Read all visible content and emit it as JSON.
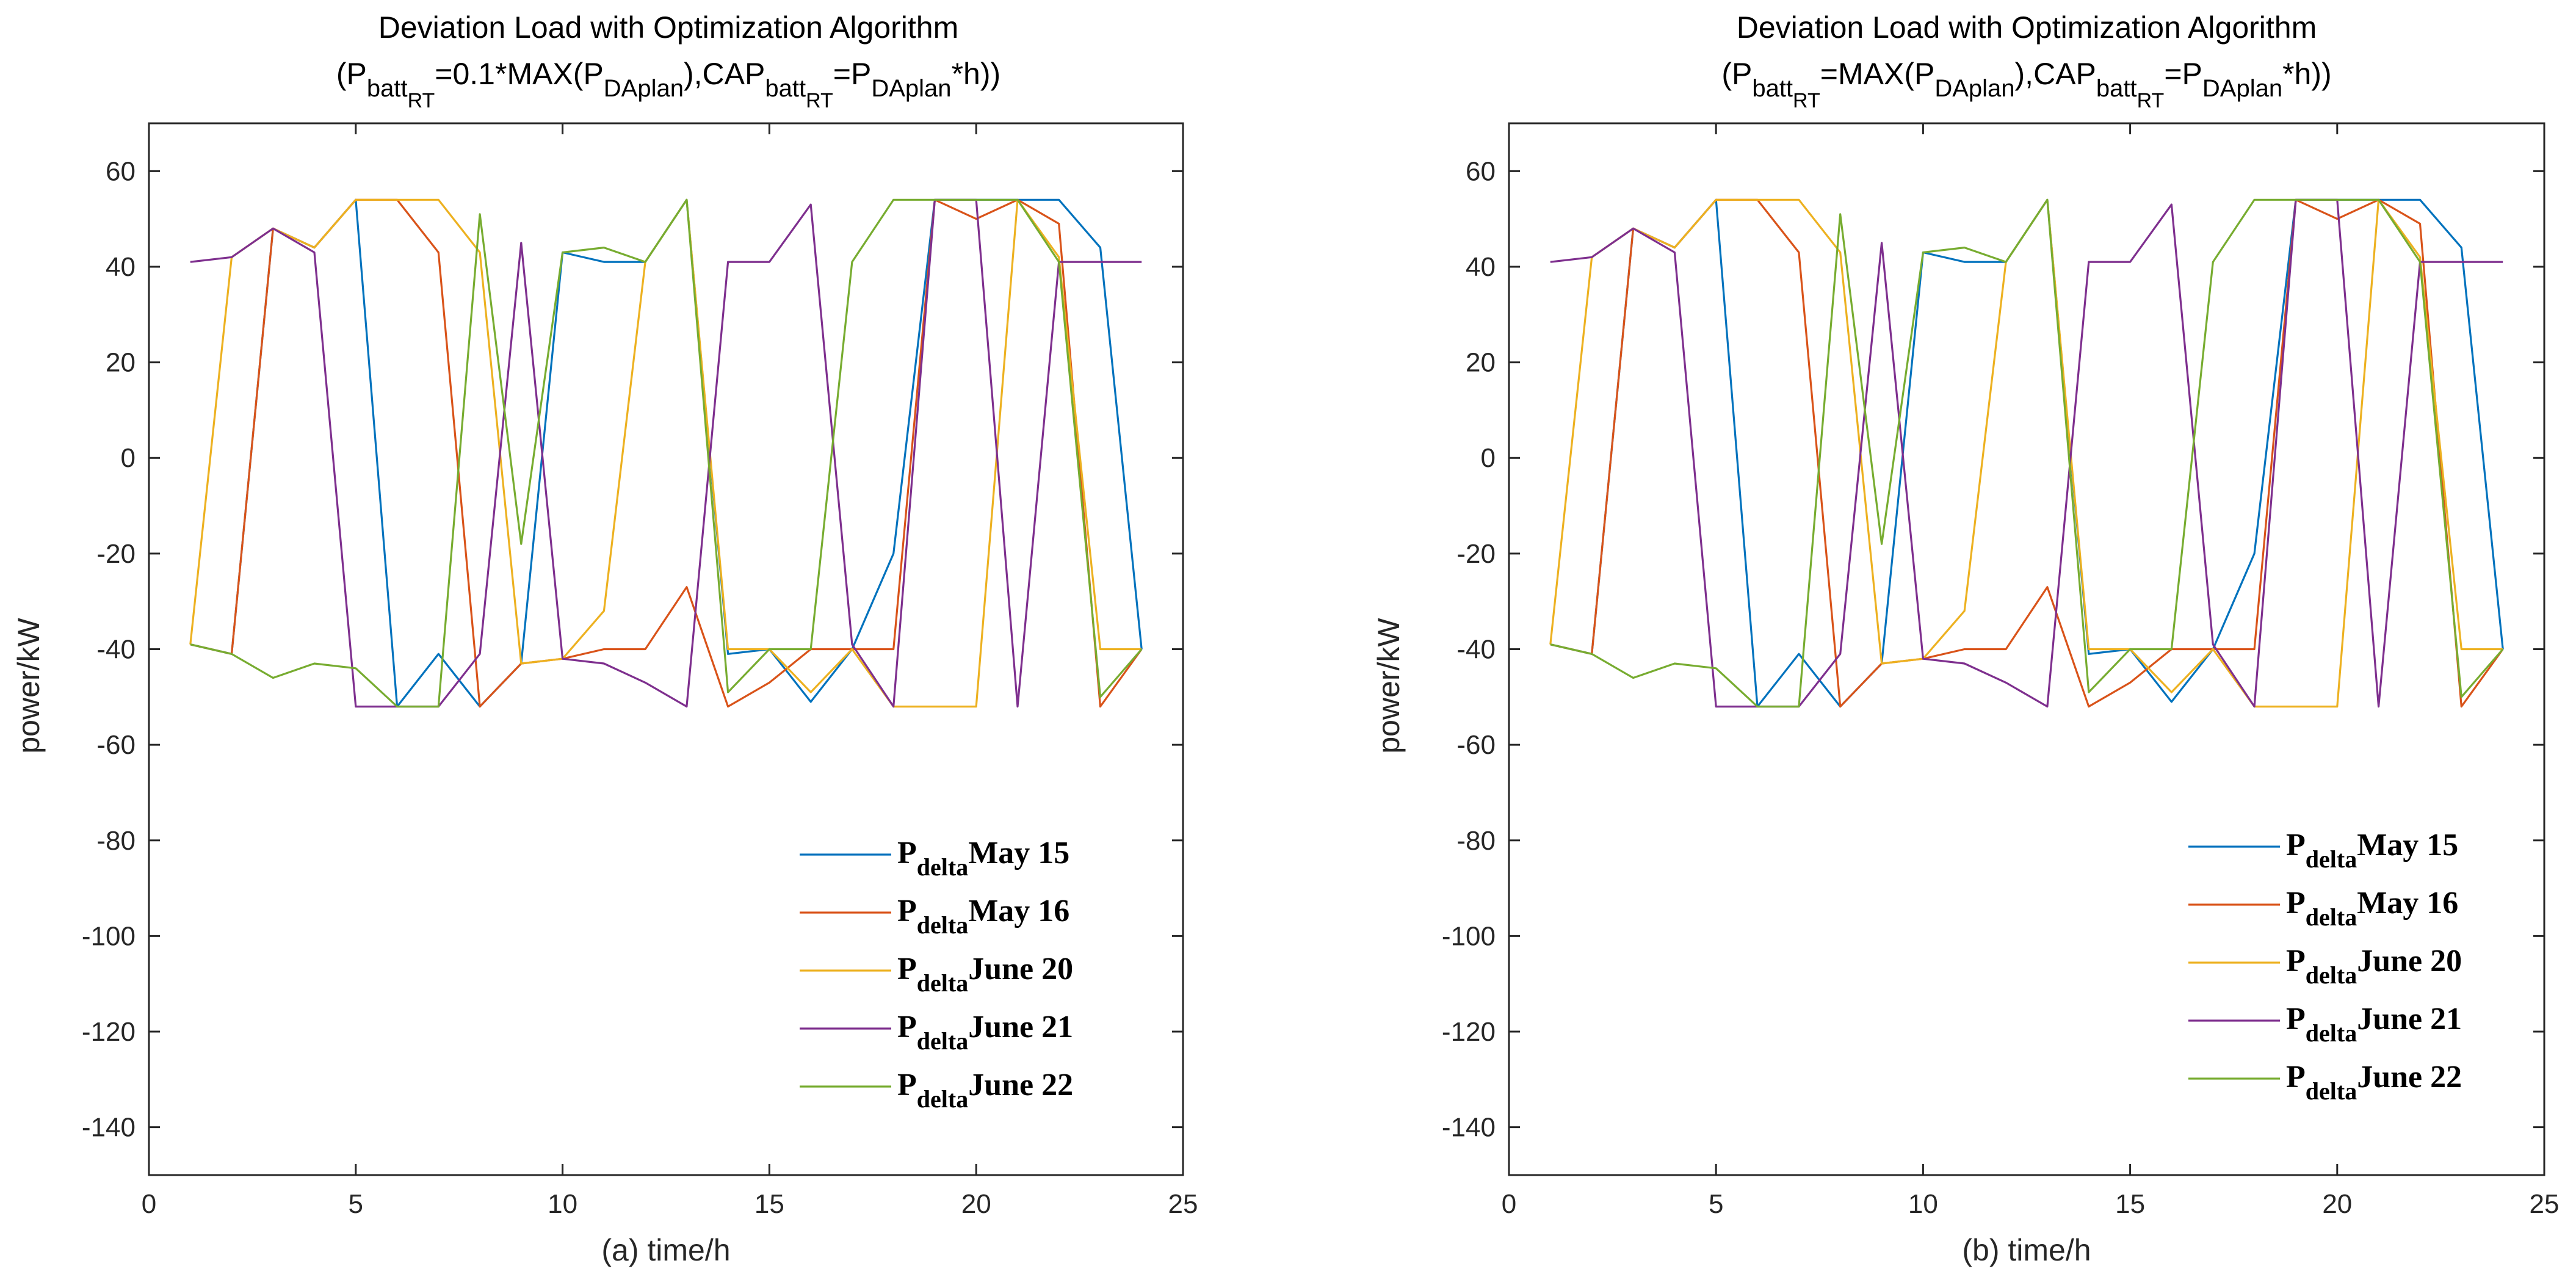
{
  "chart_data": [
    {
      "type": "line",
      "title_line1": "Deviation Load with Optimization Algorithm",
      "title_line2": {
        "open": "(P",
        "sub1": "batt",
        "subsub1": "RT",
        "mid1": "=0.1*MAX(P",
        "sub2": "DAplan",
        "mid2": "),CAP",
        "sub3": "batt",
        "subsub3": "RT",
        "mid3": "=P",
        "sub4": "DAplan",
        "close": "*h))"
      },
      "xlabel": "(a) time/h",
      "ylabel": "power/kW",
      "xlim": [
        0,
        25
      ],
      "ylim": [
        -150,
        70
      ],
      "xticks": [
        0,
        5,
        10,
        15,
        20,
        25
      ],
      "yticks": [
        60,
        40,
        20,
        0,
        -20,
        -40,
        -60,
        -80,
        -100,
        -120,
        -140
      ],
      "x": [
        1,
        2,
        3,
        4,
        5,
        6,
        7,
        8,
        9,
        10,
        11,
        12,
        13,
        14,
        15,
        16,
        17,
        18,
        19,
        20,
        21,
        22,
        23,
        24
      ],
      "series": [
        {
          "name": "May 15",
          "prefix": "P",
          "sub": "delta",
          "color": "#0072BD",
          "values": [
            -39,
            -41,
            48,
            44,
            54,
            -52,
            -41,
            -52,
            -43,
            43,
            41,
            41,
            54,
            -41,
            -40,
            -51,
            -40,
            -20,
            54,
            54,
            54,
            54,
            44,
            -40
          ]
        },
        {
          "name": "May 16",
          "prefix": "P",
          "sub": "delta",
          "color": "#D95319",
          "values": [
            -39,
            -41,
            48,
            44,
            54,
            54,
            43,
            -52,
            -43,
            -42,
            -40,
            -40,
            -27,
            -52,
            -47,
            -40,
            -40,
            -40,
            54,
            50,
            54,
            49,
            -52,
            -40
          ]
        },
        {
          "name": "June 20",
          "prefix": "P",
          "sub": "delta",
          "color": "#EDB120",
          "values": [
            -39,
            42,
            48,
            44,
            54,
            54,
            54,
            43,
            -43,
            -42,
            -32,
            41,
            54,
            -40,
            -40,
            -49,
            -40,
            -52,
            -52,
            -52,
            54,
            42,
            -40,
            -40
          ]
        },
        {
          "name": "June 21",
          "prefix": "P",
          "sub": "delta",
          "color": "#7E2F8E",
          "values": [
            41,
            42,
            48,
            43,
            -52,
            -52,
            -52,
            -41,
            45,
            -42,
            -43,
            -47,
            -52,
            41,
            41,
            53,
            -39,
            -52,
            54,
            54,
            -52,
            41,
            41,
            41
          ]
        },
        {
          "name": "June 22",
          "prefix": "P",
          "sub": "delta",
          "color": "#77AC30",
          "values": [
            -39,
            -41,
            -46,
            -43,
            -44,
            -52,
            -52,
            51,
            -18,
            43,
            44,
            41,
            54,
            -49,
            -40,
            -40,
            41,
            54,
            54,
            54,
            54,
            41,
            -50,
            -40
          ]
        }
      ]
    },
    {
      "type": "line",
      "title_line1": "Deviation Load with Optimization Algorithm",
      "title_line2": {
        "open": "(P",
        "sub1": "batt",
        "subsub1": "RT",
        "mid1": "=MAX(P",
        "sub2": "DAplan",
        "mid2": "),CAP",
        "sub3": "batt",
        "subsub3": "RT",
        "mid3": "=P",
        "sub4": "DAplan",
        "close": "*h))"
      },
      "xlabel": "(b) time/h",
      "ylabel": "power/kW",
      "xlim": [
        0,
        25
      ],
      "ylim": [
        -150,
        70
      ],
      "xticks": [
        0,
        5,
        10,
        15,
        20,
        25
      ],
      "yticks": [
        60,
        40,
        20,
        0,
        -20,
        -40,
        -60,
        -80,
        -100,
        -120,
        -140
      ],
      "x": [
        1,
        2,
        3,
        4,
        5,
        6,
        7,
        8,
        9,
        10,
        11,
        12,
        13,
        14,
        15,
        16,
        17,
        18,
        19,
        20,
        21,
        22,
        23,
        24
      ],
      "series": [
        {
          "name": "May 15",
          "prefix": "P",
          "sub": "delta",
          "color": "#0072BD",
          "values": [
            -39,
            -41,
            48,
            44,
            54,
            -52,
            -41,
            -52,
            -43,
            43,
            41,
            41,
            54,
            -41,
            -40,
            -51,
            -40,
            -20,
            54,
            54,
            54,
            54,
            44,
            -40
          ]
        },
        {
          "name": "May 16",
          "prefix": "P",
          "sub": "delta",
          "color": "#D95319",
          "values": [
            -39,
            -41,
            48,
            44,
            54,
            54,
            43,
            -52,
            -43,
            -42,
            -40,
            -40,
            -27,
            -52,
            -47,
            -40,
            -40,
            -40,
            54,
            50,
            54,
            49,
            -52,
            -40
          ]
        },
        {
          "name": "June 20",
          "prefix": "P",
          "sub": "delta",
          "color": "#EDB120",
          "values": [
            -39,
            42,
            48,
            44,
            54,
            54,
            54,
            43,
            -43,
            -42,
            -32,
            41,
            54,
            -40,
            -40,
            -49,
            -40,
            -52,
            -52,
            -52,
            54,
            42,
            -40,
            -40
          ]
        },
        {
          "name": "June 21",
          "prefix": "P",
          "sub": "delta",
          "color": "#7E2F8E",
          "values": [
            41,
            42,
            48,
            43,
            -52,
            -52,
            -52,
            -41,
            45,
            -42,
            -43,
            -47,
            -52,
            41,
            41,
            53,
            -39,
            -52,
            54,
            54,
            -52,
            41,
            41,
            41
          ]
        },
        {
          "name": "June 22",
          "prefix": "P",
          "sub": "delta",
          "color": "#77AC30",
          "values": [
            -39,
            -41,
            -46,
            -43,
            -44,
            -52,
            -52,
            51,
            -18,
            43,
            44,
            41,
            54,
            -49,
            -40,
            -40,
            41,
            54,
            54,
            54,
            54,
            41,
            -50,
            -40
          ]
        }
      ]
    }
  ]
}
